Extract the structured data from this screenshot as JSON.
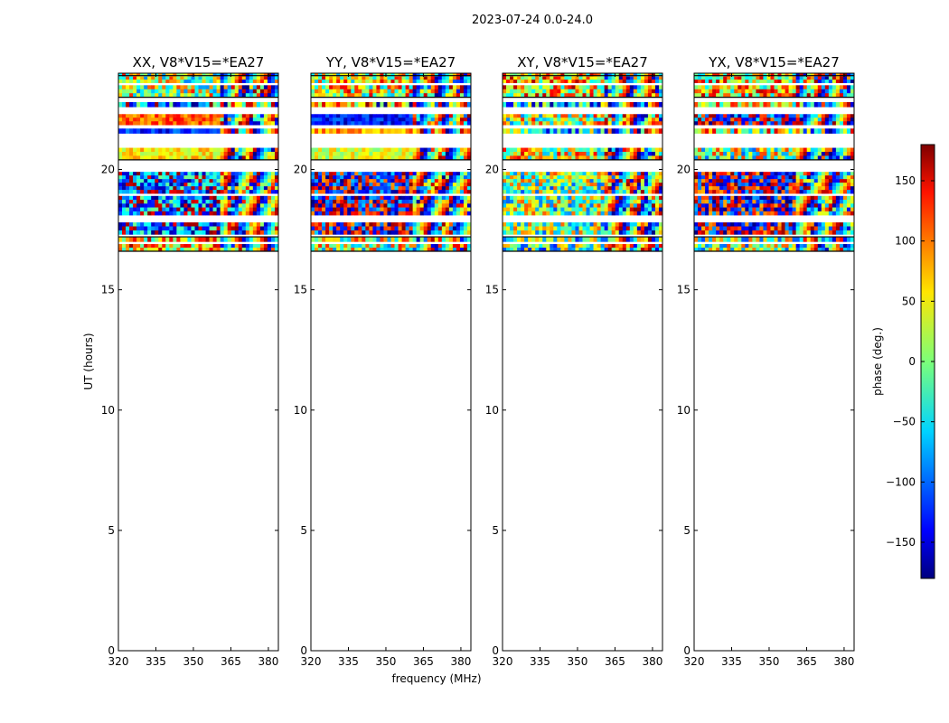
{
  "chart_data": {
    "type": "heatmap",
    "title": "2023-07-24 0.0-24.0",
    "xlabel": "frequency (MHz)",
    "ylabel": "UT (hours)",
    "xlim": [
      320,
      384
    ],
    "ylim": [
      0,
      24
    ],
    "xticks": [
      320,
      335,
      350,
      365,
      380
    ],
    "yticks": [
      0,
      5,
      10,
      15,
      20
    ],
    "data_rows_ut": [
      16.6,
      24.0
    ],
    "flagged_ut_lines": [
      16.6,
      17.2,
      20.4,
      23.0,
      23.9
    ],
    "panels": [
      {
        "title": "XX, V8*V15=*EA27",
        "base_values": [
          -110,
          100,
          50,
          -120,
          -90,
          20,
          60
        ]
      },
      {
        "title": "YY, V8*V15=*EA27",
        "base_values": [
          -170,
          -130,
          30,
          80,
          90,
          40,
          20
        ]
      },
      {
        "title": "XY, V8*V15=*EA27",
        "base_values": [
          0,
          20,
          40,
          -40,
          -60,
          60,
          -20
        ]
      },
      {
        "title": "YX, V8*V15=*EA27",
        "base_values": [
          -180,
          -160,
          10,
          40,
          30,
          50,
          0
        ]
      }
    ],
    "colorbar": {
      "label": "phase (deg.)",
      "range": [
        -180,
        180
      ],
      "ticks": [
        150,
        100,
        50,
        0,
        -50,
        -100,
        -150
      ],
      "tick_labels": [
        "150",
        "100",
        "50",
        "0",
        "−50",
        "−100",
        "−150"
      ],
      "colormap": "jet"
    }
  }
}
